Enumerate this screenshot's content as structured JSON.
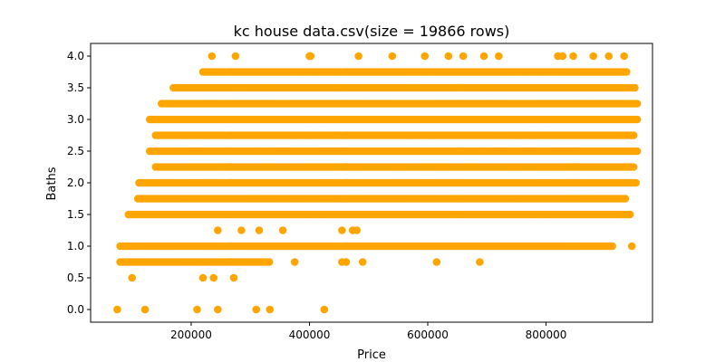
{
  "chart_data": {
    "type": "scatter",
    "title": "kc house data.csv(size = 19866 rows)",
    "xlabel": "Price",
    "ylabel": "Baths",
    "xlim": [
      30000,
      980000
    ],
    "ylim": [
      -0.2,
      4.2
    ],
    "x_ticks": [
      200000,
      400000,
      600000,
      800000
    ],
    "x_tick_labels": [
      "200000",
      "400000",
      "600000",
      "800000"
    ],
    "y_ticks": [
      0.0,
      0.5,
      1.0,
      1.5,
      2.0,
      2.5,
      3.0,
      3.5,
      4.0
    ],
    "y_tick_labels": [
      "0.0",
      "0.5",
      "1.0",
      "1.5",
      "2.0",
      "2.5",
      "3.0",
      "3.5",
      "4.0"
    ],
    "grid": false,
    "marker_color": "#ffa500",
    "series": [
      {
        "points": [
          {
            "y": 0.0,
            "x": [
              75000,
              122000,
              210000,
              245000,
              310000,
              333000,
              425000
            ]
          },
          {
            "y": 0.5,
            "x": [
              100000,
              220000,
              238000,
              272000
            ]
          },
          {
            "y": 1.25,
            "x": [
              245000,
              285000,
              315000,
              355000,
              455000,
              473000,
              480000
            ]
          },
          {
            "y": 4.0,
            "x": [
              235000,
              275000,
              400000,
              402000,
              483000,
              540000,
              595000,
              635000,
              660000,
              695000,
              720000,
              820000,
              828000,
              846000,
              880000,
              906000,
              932000
            ]
          }
        ],
        "bands": [
          {
            "y": 0.75,
            "x": [
              80000,
              335000
            ],
            "extra_x": [
              375000,
              455000,
              462000,
              490000,
              615000,
              688000
            ]
          },
          {
            "y": 1.0,
            "x": [
              80000,
              915000
            ],
            "extra_x": [
              945000
            ]
          },
          {
            "y": 1.5,
            "x": [
              94000,
              945000
            ]
          },
          {
            "y": 1.75,
            "x": [
              110000,
              935000
            ]
          },
          {
            "y": 2.0,
            "x": [
              112000,
              955000
            ]
          },
          {
            "y": 2.25,
            "x": [
              140000,
              950000
            ]
          },
          {
            "y": 2.5,
            "x": [
              130000,
              955000
            ]
          },
          {
            "y": 2.75,
            "x": [
              140000,
              950000
            ]
          },
          {
            "y": 3.0,
            "x": [
              130000,
              955000
            ]
          },
          {
            "y": 3.25,
            "x": [
              150000,
              955000
            ]
          },
          {
            "y": 3.5,
            "x": [
              170000,
              952000
            ]
          },
          {
            "y": 3.75,
            "x": [
              220000,
              938000
            ]
          }
        ]
      }
    ]
  }
}
